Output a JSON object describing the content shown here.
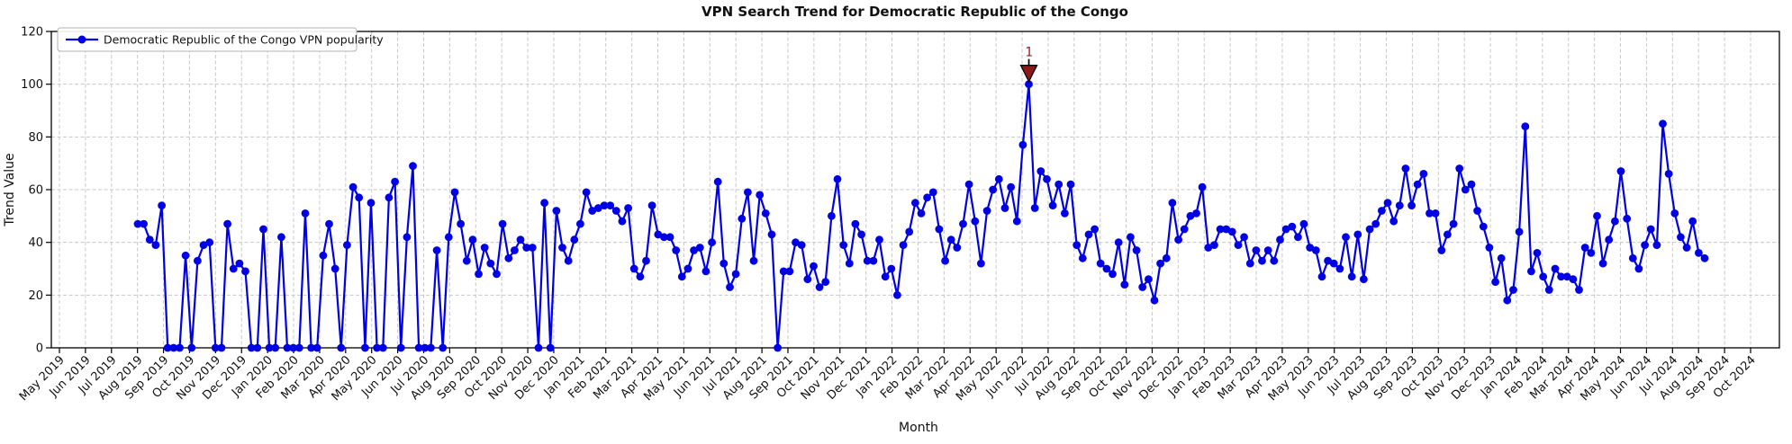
{
  "figure": {
    "title": "VPN Search Trend for Democratic Republic of the Congo",
    "xlabel": "Month",
    "ylabel": "Trend Value"
  },
  "legend": {
    "label": "Democratic Republic of the Congo VPN popularity"
  },
  "annotation": {
    "label": "1"
  },
  "colors": {
    "line": "#0000e6",
    "marker": "#0000e6",
    "grid": "#c8c8c8",
    "spine": "#000000",
    "annotation": "#8b1a1a",
    "background": "#ffffff"
  },
  "chart_data": {
    "type": "line",
    "title": "VPN Search Trend for Democratic Republic of the Congo",
    "xlabel": "Month",
    "ylabel": "Trend Value",
    "ylim": [
      0,
      120
    ],
    "yticks": [
      0,
      20,
      40,
      60,
      80,
      100,
      120
    ],
    "grid": true,
    "grid_style": "dashed",
    "legend_position": "upper left",
    "x_tick_labels": [
      "May 2019",
      "Jun 2019",
      "Jul 2019",
      "Aug 2019",
      "Sep 2019",
      "Oct 2019",
      "Nov 2019",
      "Dec 2019",
      "Jan 2020",
      "Feb 2020",
      "Mar 2020",
      "Apr 2020",
      "May 2020",
      "Jun 2020",
      "Jul 2020",
      "Aug 2020",
      "Sep 2020",
      "Oct 2020",
      "Nov 2020",
      "Dec 2020",
      "Jan 2021",
      "Feb 2021",
      "Mar 2021",
      "Apr 2021",
      "May 2021",
      "Jun 2021",
      "Jul 2021",
      "Aug 2021",
      "Sep 2021",
      "Oct 2021",
      "Nov 2021",
      "Dec 2021",
      "Jan 2022",
      "Feb 2022",
      "Mar 2022",
      "Apr 2022",
      "May 2022",
      "Jun 2022",
      "Jul 2022",
      "Aug 2022",
      "Sep 2022",
      "Oct 2022",
      "Nov 2022",
      "Dec 2022",
      "Jan 2023",
      "Feb 2023",
      "Mar 2023",
      "Apr 2023",
      "May 2023",
      "Jun 2023",
      "Jul 2023",
      "Aug 2023",
      "Sep 2023",
      "Oct 2023",
      "Nov 2023",
      "Dec 2023",
      "Jan 2024",
      "Feb 2024",
      "Mar 2024",
      "Apr 2024",
      "May 2024",
      "Jun 2024",
      "Jul 2024",
      "Aug 2024",
      "Sep 2024",
      "Oct 2024"
    ],
    "series": [
      {
        "name": "Democratic Republic of the Congo VPN popularity",
        "start_date": "2019-08-04",
        "frequency": "weekly",
        "values": [
          47,
          47,
          41,
          39,
          54,
          0,
          0,
          0,
          35,
          0,
          33,
          39,
          40,
          0,
          0,
          47,
          30,
          32,
          29,
          0,
          0,
          45,
          0,
          0,
          42,
          0,
          0,
          0,
          51,
          0,
          0,
          35,
          47,
          30,
          0,
          39,
          61,
          57,
          0,
          55,
          0,
          0,
          57,
          63,
          0,
          42,
          69,
          0,
          0,
          0,
          37,
          0,
          42,
          59,
          47,
          33,
          41,
          28,
          38,
          32,
          28,
          47,
          34,
          37,
          41,
          38,
          38,
          0,
          55,
          0,
          52,
          38,
          33,
          41,
          47,
          59,
          52,
          53,
          54,
          54,
          52,
          48,
          53,
          30,
          27,
          33,
          54,
          43,
          42,
          42,
          37,
          27,
          30,
          37,
          38,
          29,
          40,
          63,
          32,
          23,
          28,
          49,
          59,
          33,
          58,
          51,
          43,
          0,
          29,
          29,
          40,
          39,
          26,
          31,
          23,
          25,
          50,
          64,
          39,
          32,
          47,
          43,
          33,
          33,
          41,
          27,
          30,
          20,
          39,
          44,
          55,
          51,
          57,
          59,
          45,
          33,
          41,
          38,
          47,
          62,
          48,
          32,
          52,
          60,
          64,
          53,
          61,
          48,
          77,
          100,
          53,
          67,
          64,
          54,
          62,
          51,
          62,
          39,
          34,
          43,
          45,
          32,
          30,
          28,
          40,
          24,
          42,
          37,
          23,
          26,
          18,
          32,
          34,
          55,
          41,
          45,
          50,
          51,
          61,
          38,
          39,
          45,
          45,
          44,
          39,
          42,
          32,
          37,
          33,
          37,
          33,
          41,
          45,
          46,
          42,
          47,
          38,
          37,
          27,
          33,
          32,
          30,
          42,
          27,
          43,
          26,
          45,
          47,
          52,
          55,
          48,
          54,
          68,
          54,
          62,
          66,
          51,
          51,
          37,
          43,
          47,
          68,
          60,
          62,
          52,
          46,
          38,
          25,
          34,
          18,
          22,
          44,
          84,
          29,
          36,
          27,
          22,
          30,
          27,
          27,
          26,
          22,
          38,
          36,
          50,
          32,
          41,
          48,
          67,
          49,
          34,
          30,
          39,
          45,
          39,
          85,
          66,
          51,
          42,
          38,
          48,
          36,
          34
        ]
      }
    ],
    "annotations": [
      {
        "label": "1",
        "series_index": 149,
        "value": 100,
        "approx_date": "2022-06-16"
      }
    ]
  }
}
